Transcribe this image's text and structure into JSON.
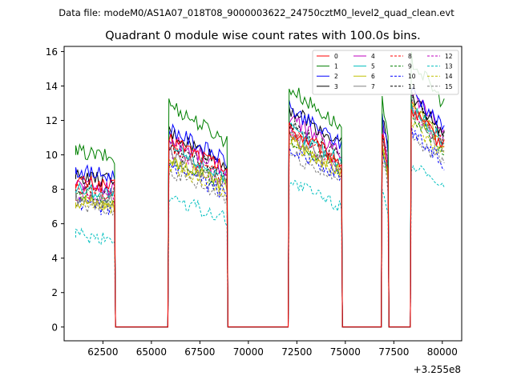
{
  "chart_data": {
    "type": "line",
    "suptitle": "Data file: modeM0/AS1A07_018T08_9000003622_24750cztM0_level2_quad_clean.evt",
    "title": "Quadrant 0 module wise count rates with 100.0s bins.",
    "xlabel": "",
    "ylabel": "",
    "x_offset_label": "+3.255e8",
    "x_ticks": [
      62500,
      65000,
      67500,
      70000,
      72500,
      75000,
      77500,
      80000
    ],
    "x_tick_labels": [
      "62500",
      "65000",
      "67500",
      "70000",
      "72500",
      "75000",
      "77500",
      "80000"
    ],
    "y_ticks": [
      0,
      2,
      4,
      6,
      8,
      10,
      12,
      14,
      16
    ],
    "y_tick_labels": [
      "0",
      "2",
      "4",
      "6",
      "8",
      "10",
      "12",
      "14",
      "16"
    ],
    "xlim": [
      60500,
      81000
    ],
    "ylim": [
      -0.8,
      16.3
    ],
    "legend_position": "upper-right",
    "bin_width_s": 100,
    "segments": [
      {
        "start": 61100,
        "end": 63100
      },
      {
        "start": 65900,
        "end": 68900
      },
      {
        "start": 72100,
        "end": 74800
      },
      {
        "start": 76900,
        "end": 77200
      },
      {
        "start": 78400,
        "end": 80100
      }
    ],
    "gap_value": 0,
    "series": [
      {
        "name": "0",
        "color": "#ff0000",
        "style": "solid",
        "segment_means": [
          8.3,
          9.3,
          9.8,
          9.5,
          10.7
        ]
      },
      {
        "name": "1",
        "color": "#008000",
        "style": "solid",
        "segment_means": [
          10.0,
          11.0,
          11.8,
          11.0,
          13.2
        ]
      },
      {
        "name": "2",
        "color": "#0000ff",
        "style": "solid",
        "segment_means": [
          8.9,
          9.8,
          10.8,
          10.5,
          11.7
        ]
      },
      {
        "name": "3",
        "color": "#000000",
        "style": "solid",
        "segment_means": [
          8.6,
          9.6,
          10.8,
          10.6,
          11.4
        ]
      },
      {
        "name": "4",
        "color": "#bf00bf",
        "style": "solid",
        "segment_means": [
          8.2,
          9.3,
          10.3,
          10.0,
          11.6
        ]
      },
      {
        "name": "5",
        "color": "#00bfbf",
        "style": "solid",
        "segment_means": [
          7.9,
          8.9,
          9.8,
          9.5,
          10.9
        ]
      },
      {
        "name": "6",
        "color": "#bfbf00",
        "style": "solid",
        "segment_means": [
          7.2,
          8.3,
          9.2,
          9.0,
          10.8
        ]
      },
      {
        "name": "7",
        "color": "#808080",
        "style": "solid",
        "segment_means": [
          7.4,
          8.5,
          9.4,
          9.2,
          10.6
        ]
      },
      {
        "name": "8",
        "color": "#ff0000",
        "style": "dashed",
        "segment_means": [
          7.8,
          8.8,
          9.7,
          9.4,
          10.9
        ]
      },
      {
        "name": "9",
        "color": "#008000",
        "style": "dashed",
        "segment_means": [
          7.5,
          8.4,
          9.3,
          9.1,
          10.5
        ]
      },
      {
        "name": "10",
        "color": "#0000ff",
        "style": "dashed",
        "segment_means": [
          7.0,
          7.9,
          8.9,
          8.6,
          9.7
        ]
      },
      {
        "name": "11",
        "color": "#000000",
        "style": "dashed",
        "segment_means": [
          8.0,
          9.0,
          10.0,
          9.8,
          11.2
        ]
      },
      {
        "name": "12",
        "color": "#bf00bf",
        "style": "dashed",
        "segment_means": [
          7.6,
          8.6,
          9.5,
          9.3,
          10.7
        ]
      },
      {
        "name": "13",
        "color": "#00bfbf",
        "style": "dashed",
        "segment_means": [
          5.2,
          6.4,
          7.2,
          7.0,
          8.0
        ]
      },
      {
        "name": "14",
        "color": "#bfbf00",
        "style": "dashed",
        "segment_means": [
          7.1,
          8.0,
          9.0,
          8.8,
          10.1
        ]
      },
      {
        "name": "15",
        "color": "#808080",
        "style": "dashed",
        "segment_means": [
          6.9,
          7.7,
          8.6,
          8.4,
          9.6
        ]
      }
    ]
  }
}
